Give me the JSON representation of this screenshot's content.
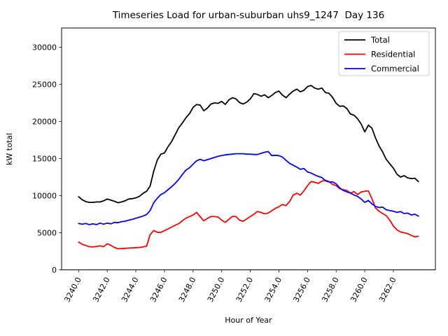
{
  "title": "Timeseries Load for urban-suburban uhs9_1247  Day 136",
  "chart_data": {
    "type": "line",
    "title": "Timeseries Load for urban-suburban uhs9_1247  Day 136",
    "xlabel": "Hour of Year",
    "ylabel": "kW total",
    "xlim": [
      3238.8125,
      3264.9375
    ],
    "ylim": [
      0,
      32600
    ],
    "grid": false,
    "x_start": 3240.0,
    "x_step": 0.25,
    "xticks": {
      "values": [
        3240,
        3242,
        3244,
        3246,
        3248,
        3250,
        3252,
        3254,
        3256,
        3258,
        3260,
        3262
      ],
      "labels": [
        "3240.0",
        "3242.0",
        "3244.0",
        "3246.0",
        "3248.0",
        "3250.0",
        "3252.0",
        "3254.0",
        "3256.0",
        "3258.0",
        "3260.0",
        "3262.0"
      ]
    },
    "yticks": {
      "values": [
        0,
        5000,
        10000,
        15000,
        20000,
        25000,
        30000
      ],
      "labels": [
        "0",
        "5000",
        "10000",
        "15000",
        "20000",
        "25000",
        "30000"
      ]
    },
    "legend": {
      "position": "upper right",
      "entries": [
        "Total",
        "Residential",
        "Commercial"
      ]
    },
    "series": [
      {
        "name": "Total",
        "color": "#000000",
        "values": [
          9850,
          9450,
          9200,
          9100,
          9100,
          9150,
          9150,
          9300,
          9550,
          9400,
          9250,
          9050,
          9150,
          9300,
          9550,
          9600,
          9700,
          9900,
          10300,
          10600,
          11300,
          13300,
          14800,
          15600,
          15750,
          16600,
          17300,
          18200,
          19150,
          19800,
          20500,
          21050,
          21900,
          22300,
          22200,
          21450,
          21800,
          22350,
          22500,
          22450,
          22700,
          22300,
          22900,
          23200,
          23050,
          22550,
          22350,
          22600,
          23050,
          23750,
          23650,
          23400,
          23600,
          23200,
          23500,
          23900,
          24100,
          23550,
          23200,
          23700,
          24100,
          24350,
          24000,
          24200,
          24700,
          24850,
          24500,
          24350,
          24500,
          23900,
          23800,
          23250,
          22450,
          22050,
          22100,
          21750,
          21000,
          20850,
          20350,
          19650,
          18600,
          19500,
          19100,
          17800,
          16700,
          15900,
          14900,
          14300,
          13700,
          12900,
          12500,
          12700,
          12400,
          12300,
          12350,
          11900
        ]
      },
      {
        "name": "Residential",
        "color": "#ff0000",
        "values": [
          3750,
          3450,
          3280,
          3120,
          3090,
          3150,
          3240,
          3120,
          3520,
          3300,
          3020,
          2840,
          2870,
          2900,
          2930,
          2960,
          2990,
          3020,
          3090,
          3180,
          4750,
          5300,
          5070,
          5040,
          5290,
          5510,
          5760,
          6010,
          6230,
          6610,
          6960,
          7180,
          7400,
          7740,
          7180,
          6610,
          6930,
          7180,
          7180,
          7110,
          6700,
          6400,
          6800,
          7200,
          7180,
          6700,
          6550,
          6860,
          7180,
          7490,
          7870,
          7740,
          7550,
          7650,
          7960,
          8280,
          8500,
          8810,
          8660,
          9220,
          10100,
          10320,
          10080,
          10640,
          11350,
          11900,
          11800,
          11650,
          11950,
          12100,
          11900,
          11520,
          11350,
          10950,
          10800,
          10700,
          10350,
          10550,
          10150,
          10500,
          10600,
          10650,
          9600,
          8350,
          7900,
          7600,
          7300,
          6700,
          5900,
          5400,
          5100,
          5000,
          4880,
          4650,
          4450,
          4530
        ]
      },
      {
        "name": "Commercial",
        "color": "#0000ff",
        "values": [
          6250,
          6150,
          6250,
          6100,
          6200,
          6100,
          6300,
          6150,
          6300,
          6200,
          6400,
          6350,
          6500,
          6550,
          6700,
          6800,
          6950,
          7100,
          7250,
          7450,
          8000,
          9050,
          9650,
          10150,
          10400,
          10800,
          11200,
          11650,
          12200,
          12850,
          13450,
          13750,
          14250,
          14700,
          14900,
          14700,
          14850,
          15000,
          15150,
          15300,
          15400,
          15500,
          15550,
          15600,
          15650,
          15650,
          15650,
          15600,
          15600,
          15550,
          15550,
          15700,
          15850,
          15950,
          15400,
          15450,
          15400,
          15200,
          14750,
          14350,
          14100,
          13850,
          13550,
          13650,
          13200,
          13050,
          12800,
          12600,
          12450,
          12000,
          11850,
          11850,
          11600,
          11050,
          10700,
          10500,
          10350,
          10100,
          9900,
          9550,
          9100,
          9350,
          8900,
          8550,
          8400,
          8450,
          8100,
          8000,
          7900,
          7750,
          7850,
          7600,
          7650,
          7400,
          7500,
          7250
        ]
      }
    ]
  }
}
